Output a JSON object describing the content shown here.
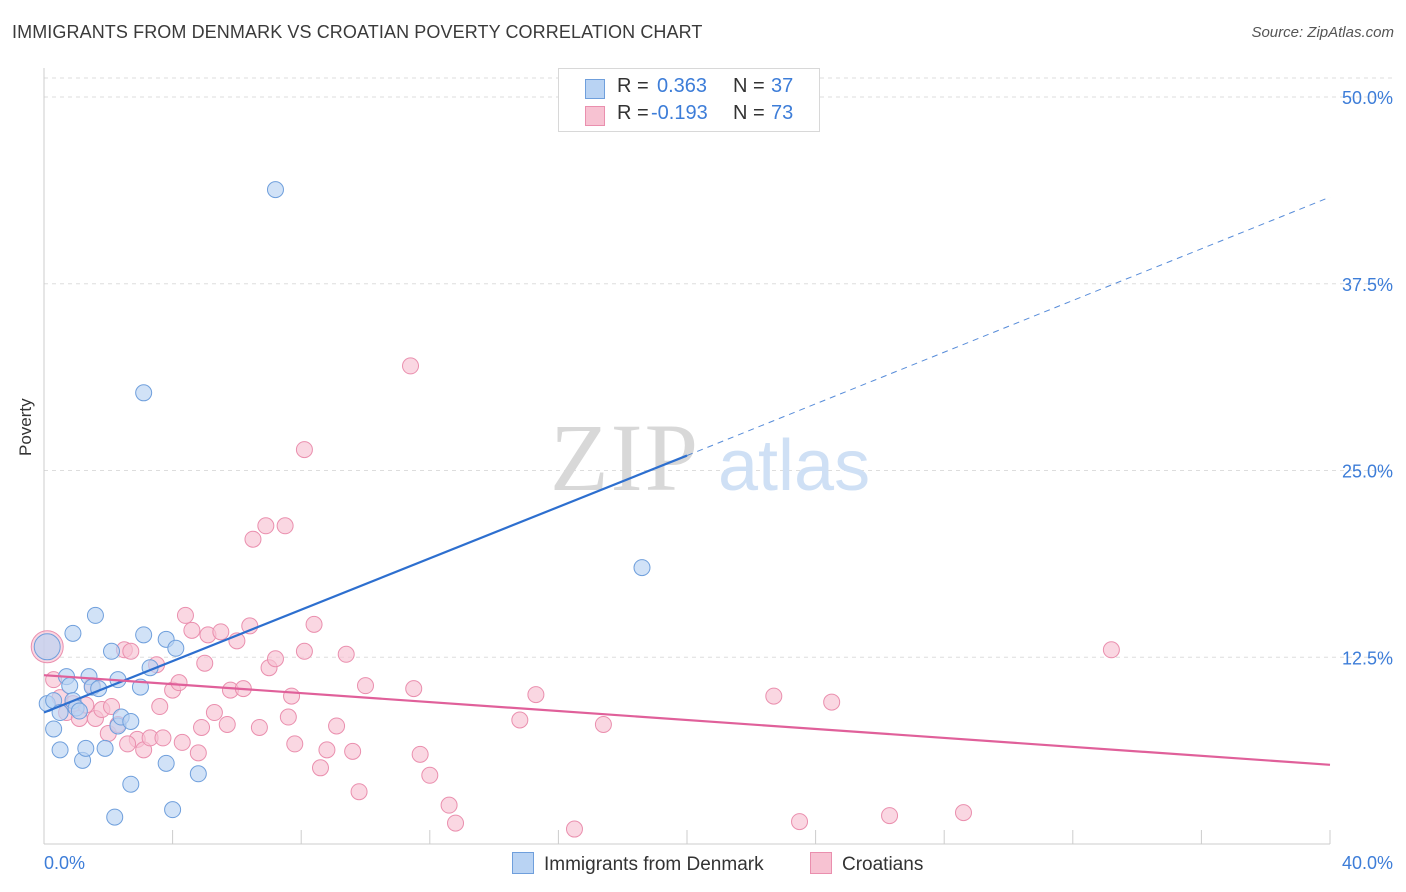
{
  "header": {
    "title": "IMMIGRANTS FROM DENMARK VS CROATIAN POVERTY CORRELATION CHART",
    "source": "Source: ZipAtlas.com"
  },
  "watermark": {
    "zip": "ZIP",
    "atlas": "atlas"
  },
  "colors": {
    "blue_fill": "#b9d3f3",
    "blue_stroke": "#6f9fdc",
    "blue_line": "#2d6fcf",
    "pink_fill": "#f7c2d2",
    "pink_stroke": "#ea8fae",
    "pink_line": "#e0609a",
    "tick_label": "#3d7dd8",
    "grid": "#dddddd"
  },
  "legend_top": {
    "rows": [
      {
        "r_label": "R =",
        "r_value": "0.363",
        "n_label": "N =",
        "n_value": "37"
      },
      {
        "r_label": "R =",
        "r_value": "-0.193",
        "n_label": "N =",
        "n_value": "73"
      }
    ]
  },
  "legend_bottom": {
    "series1": "Immigrants from Denmark",
    "series2": "Croatians"
  },
  "chart_data": {
    "type": "scatter",
    "title": "IMMIGRANTS FROM DENMARK VS CROATIAN POVERTY CORRELATION CHART",
    "xlabel": "",
    "ylabel": "Poverty",
    "xlim": [
      0,
      40
    ],
    "ylim": [
      0,
      50
    ],
    "x_tick_labels": [
      "0.0%",
      "40.0%"
    ],
    "y_ticks": [
      12.5,
      25.0,
      37.5,
      50.0
    ],
    "y_tick_labels": [
      "12.5%",
      "25.0%",
      "37.5%",
      "50.0%"
    ],
    "grid": true,
    "legend_placement": "top-center and bottom",
    "series": [
      {
        "name": "Immigrants from Denmark",
        "r": 0.363,
        "n": 37,
        "trend": {
          "x0": 0.0,
          "y0": 8.8,
          "x1": 20.0,
          "y1": 26.0,
          "dash_x1": 40.0,
          "dash_y1": 43.3
        },
        "points": [
          [
            0.1,
            13.2
          ],
          [
            0.1,
            9.4
          ],
          [
            0.3,
            7.7
          ],
          [
            0.3,
            9.6
          ],
          [
            0.5,
            6.3
          ],
          [
            0.5,
            8.8
          ],
          [
            0.7,
            11.2
          ],
          [
            0.8,
            10.6
          ],
          [
            0.9,
            9.6
          ],
          [
            0.9,
            14.1
          ],
          [
            1.0,
            9.1
          ],
          [
            1.2,
            5.6
          ],
          [
            1.3,
            6.4
          ],
          [
            1.4,
            11.2
          ],
          [
            1.5,
            10.5
          ],
          [
            1.6,
            15.3
          ],
          [
            1.7,
            10.4
          ],
          [
            1.9,
            6.4
          ],
          [
            2.1,
            12.9
          ],
          [
            2.2,
            1.8
          ],
          [
            2.3,
            7.9
          ],
          [
            2.3,
            11.0
          ],
          [
            2.4,
            8.5
          ],
          [
            2.7,
            4.0
          ],
          [
            2.7,
            8.2
          ],
          [
            3.1,
            30.2
          ],
          [
            3.1,
            14.0
          ],
          [
            3.3,
            11.8
          ],
          [
            3.8,
            5.4
          ],
          [
            3.8,
            13.7
          ],
          [
            4.0,
            2.3
          ],
          [
            4.1,
            13.1
          ],
          [
            4.8,
            4.7
          ],
          [
            7.2,
            43.8
          ],
          [
            18.6,
            18.5
          ],
          [
            3.0,
            10.5
          ],
          [
            1.1,
            8.9
          ]
        ]
      },
      {
        "name": "Croatians",
        "r": -0.193,
        "n": 73,
        "trend": {
          "x0": 0.0,
          "y0": 11.3,
          "x1": 40.0,
          "y1": 5.3
        },
        "points": [
          [
            0.1,
            13.2
          ],
          [
            0.3,
            11.0
          ],
          [
            0.5,
            9.8
          ],
          [
            0.7,
            8.8
          ],
          [
            0.9,
            9.4
          ],
          [
            1.1,
            8.4
          ],
          [
            1.3,
            9.3
          ],
          [
            1.6,
            8.4
          ],
          [
            1.8,
            9.0
          ],
          [
            2.0,
            7.4
          ],
          [
            2.1,
            9.2
          ],
          [
            2.3,
            8.0
          ],
          [
            2.5,
            13.0
          ],
          [
            2.7,
            12.9
          ],
          [
            2.9,
            7.0
          ],
          [
            3.1,
            6.3
          ],
          [
            3.3,
            7.1
          ],
          [
            3.5,
            12.0
          ],
          [
            3.6,
            9.2
          ],
          [
            3.7,
            7.1
          ],
          [
            4.0,
            10.3
          ],
          [
            4.2,
            10.8
          ],
          [
            4.3,
            6.8
          ],
          [
            4.4,
            15.3
          ],
          [
            4.6,
            14.3
          ],
          [
            4.8,
            6.1
          ],
          [
            4.9,
            7.8
          ],
          [
            5.1,
            14.0
          ],
          [
            5.3,
            8.8
          ],
          [
            5.5,
            14.2
          ],
          [
            5.7,
            8.0
          ],
          [
            5.8,
            10.3
          ],
          [
            6.0,
            13.6
          ],
          [
            6.2,
            10.4
          ],
          [
            6.4,
            14.6
          ],
          [
            6.5,
            20.4
          ],
          [
            6.7,
            7.8
          ],
          [
            6.9,
            21.3
          ],
          [
            7.0,
            11.8
          ],
          [
            7.2,
            12.4
          ],
          [
            7.5,
            21.3
          ],
          [
            7.6,
            8.5
          ],
          [
            7.7,
            9.9
          ],
          [
            7.8,
            6.7
          ],
          [
            8.1,
            26.4
          ],
          [
            8.1,
            12.9
          ],
          [
            8.4,
            14.7
          ],
          [
            8.6,
            5.1
          ],
          [
            8.8,
            6.3
          ],
          [
            9.1,
            7.9
          ],
          [
            9.4,
            12.7
          ],
          [
            9.6,
            6.2
          ],
          [
            9.8,
            3.5
          ],
          [
            10.0,
            10.6
          ],
          [
            11.4,
            32.0
          ],
          [
            11.5,
            10.4
          ],
          [
            11.7,
            6.0
          ],
          [
            12.0,
            4.6
          ],
          [
            12.6,
            2.6
          ],
          [
            12.8,
            1.4
          ],
          [
            14.8,
            8.3
          ],
          [
            15.3,
            10.0
          ],
          [
            16.5,
            1.0
          ],
          [
            17.4,
            8.0
          ],
          [
            22.7,
            9.9
          ],
          [
            23.5,
            1.5
          ],
          [
            24.5,
            9.5
          ],
          [
            26.3,
            1.9
          ],
          [
            28.6,
            2.1
          ],
          [
            33.2,
            13.0
          ],
          [
            1.5,
            10.6
          ],
          [
            2.6,
            6.7
          ],
          [
            5.0,
            12.1
          ]
        ]
      }
    ]
  }
}
